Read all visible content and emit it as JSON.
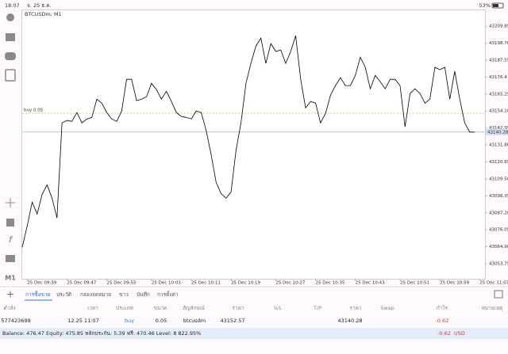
{
  "status_bar": {
    "time": "18:07",
    "date": "จ. 25 ธ.ค.",
    "battery": "53%"
  },
  "chart_data": {
    "type": "line",
    "title": "BTCUSDm, M1",
    "color": "#000000",
    "categories": [
      null,
      "25 Dec 09:39",
      null,
      null,
      null,
      null,
      null,
      null,
      null,
      "25 Dec 09:47",
      null,
      null,
      null,
      null,
      null,
      null,
      null,
      "25 Dec 09:55",
      null,
      null,
      null,
      null,
      null,
      null,
      null,
      null,
      "25 Dec 10:03",
      null,
      null,
      null,
      null,
      null,
      null,
      null,
      "25 Dec 10:11",
      null,
      null,
      null,
      null,
      null,
      null,
      null,
      "25 Dec 10:19",
      null,
      null,
      null,
      null,
      null,
      null,
      null,
      null,
      "25 Dec 10:27",
      null,
      null,
      null,
      null,
      null,
      null,
      null,
      "25 Dec 10:35",
      null,
      null,
      null,
      null,
      null,
      null,
      null,
      "25 Dec 10:43",
      null,
      null,
      null,
      null,
      null,
      null,
      null,
      null,
      "25 Dec 10:51",
      null,
      null,
      null,
      null,
      null,
      null,
      null,
      "25 Dec 10:59",
      null,
      null,
      null,
      null,
      null,
      null,
      null,
      "25 Dec 11:07"
    ],
    "values": [
      43064.5,
      43078.6,
      43094.2,
      43086.4,
      43099.4,
      43105.6,
      43096.8,
      43083.8,
      43146.3,
      43147.9,
      43147.3,
      43153.1,
      43146.3,
      43148.9,
      43149.9,
      43161.9,
      43159.3,
      43153.1,
      43148.9,
      43147.3,
      43154.1,
      43174.9,
      43174.9,
      43160.9,
      43161.9,
      43163.5,
      43172.3,
      43168.2,
      43161.9,
      43167.1,
      43160.4,
      43153.1,
      43150.5,
      43149.9,
      43148.9,
      43154.1,
      43153.1,
      43141.1,
      43125.5,
      43107.2,
      43099.9,
      43096.8,
      43101.0,
      43128.1,
      43146.3,
      43172.3,
      43185.4,
      43196.8,
      43202.0,
      43185.4,
      43198.4,
      43193.2,
      43194.2,
      43185.4,
      43193.2,
      43203.6,
      43174.9,
      43156.2,
      43160.4,
      43159.3,
      43146.3,
      43152.5,
      43164.5,
      43170.8,
      43176.0,
      43170.8,
      43170.8,
      43177.5,
      43189.5,
      43182.8,
      43168.7,
      43177.5,
      43173.4,
      43168.7,
      43174.9,
      43174.9,
      43170.8,
      43143.7,
      43165.6,
      43168.7,
      43165.6,
      43159.3,
      43161.9,
      43182.8,
      43181.2,
      43182.8,
      43161.9,
      43180.2,
      43161.9,
      43146.3,
      43140.28,
      43140.28,
      null
    ],
    "ylim": [
      43043.9,
      43220.8
    ],
    "yticks": [
      43053.75,
      {
        "value": 43064.9,
        "label": "43064.90"
      },
      43076.05,
      {
        "value": 43087.2,
        "label": "43087.20"
      },
      43098.35,
      {
        "value": 43109.5,
        "label": "43109.50"
      },
      43120.65,
      {
        "value": 43131.8,
        "label": "43131.80"
      },
      43142.95,
      {
        "value": 43154.1,
        "label": "43154.10"
      },
      43165.25,
      43176.4,
      43187.55,
      {
        "value": 43198.7,
        "label": "43198.70"
      },
      43209.85
    ],
    "order_line": {
      "label": "buy 0.05",
      "value": 43152.57,
      "color": "#c8c060"
    },
    "current_price": 43140.28,
    "timeframe": "M1"
  },
  "tabs": [
    "การซื้อขาย",
    "ประวัติ",
    "กล่องจดหมาย",
    "ข่าว",
    "บันทึก",
    "การตั้งค่า"
  ],
  "table": {
    "header": [
      "คำสั่ง",
      "เวลา",
      "ประเภท",
      "ขนาด",
      "สัญลักษณ์",
      "ราคา",
      "S/L",
      "T/P",
      "ราคา",
      "Swap",
      "กำไร",
      "หมายเหตุ"
    ],
    "row": {
      "order": "577423699",
      "time": "12.25 11:07",
      "type": "buy",
      "volume": "0.05",
      "symbol": "btcusdm",
      "open_price": "43152.57",
      "price": "43140.28",
      "profit": "-0.62"
    }
  },
  "summary": {
    "text": "Balance: 476.47 Equity: 475.85 หลักประกัน: 5.39 ฟรี: 470.46 Level: 8 822.95%",
    "profit": "-0.62",
    "currency": "USD"
  }
}
